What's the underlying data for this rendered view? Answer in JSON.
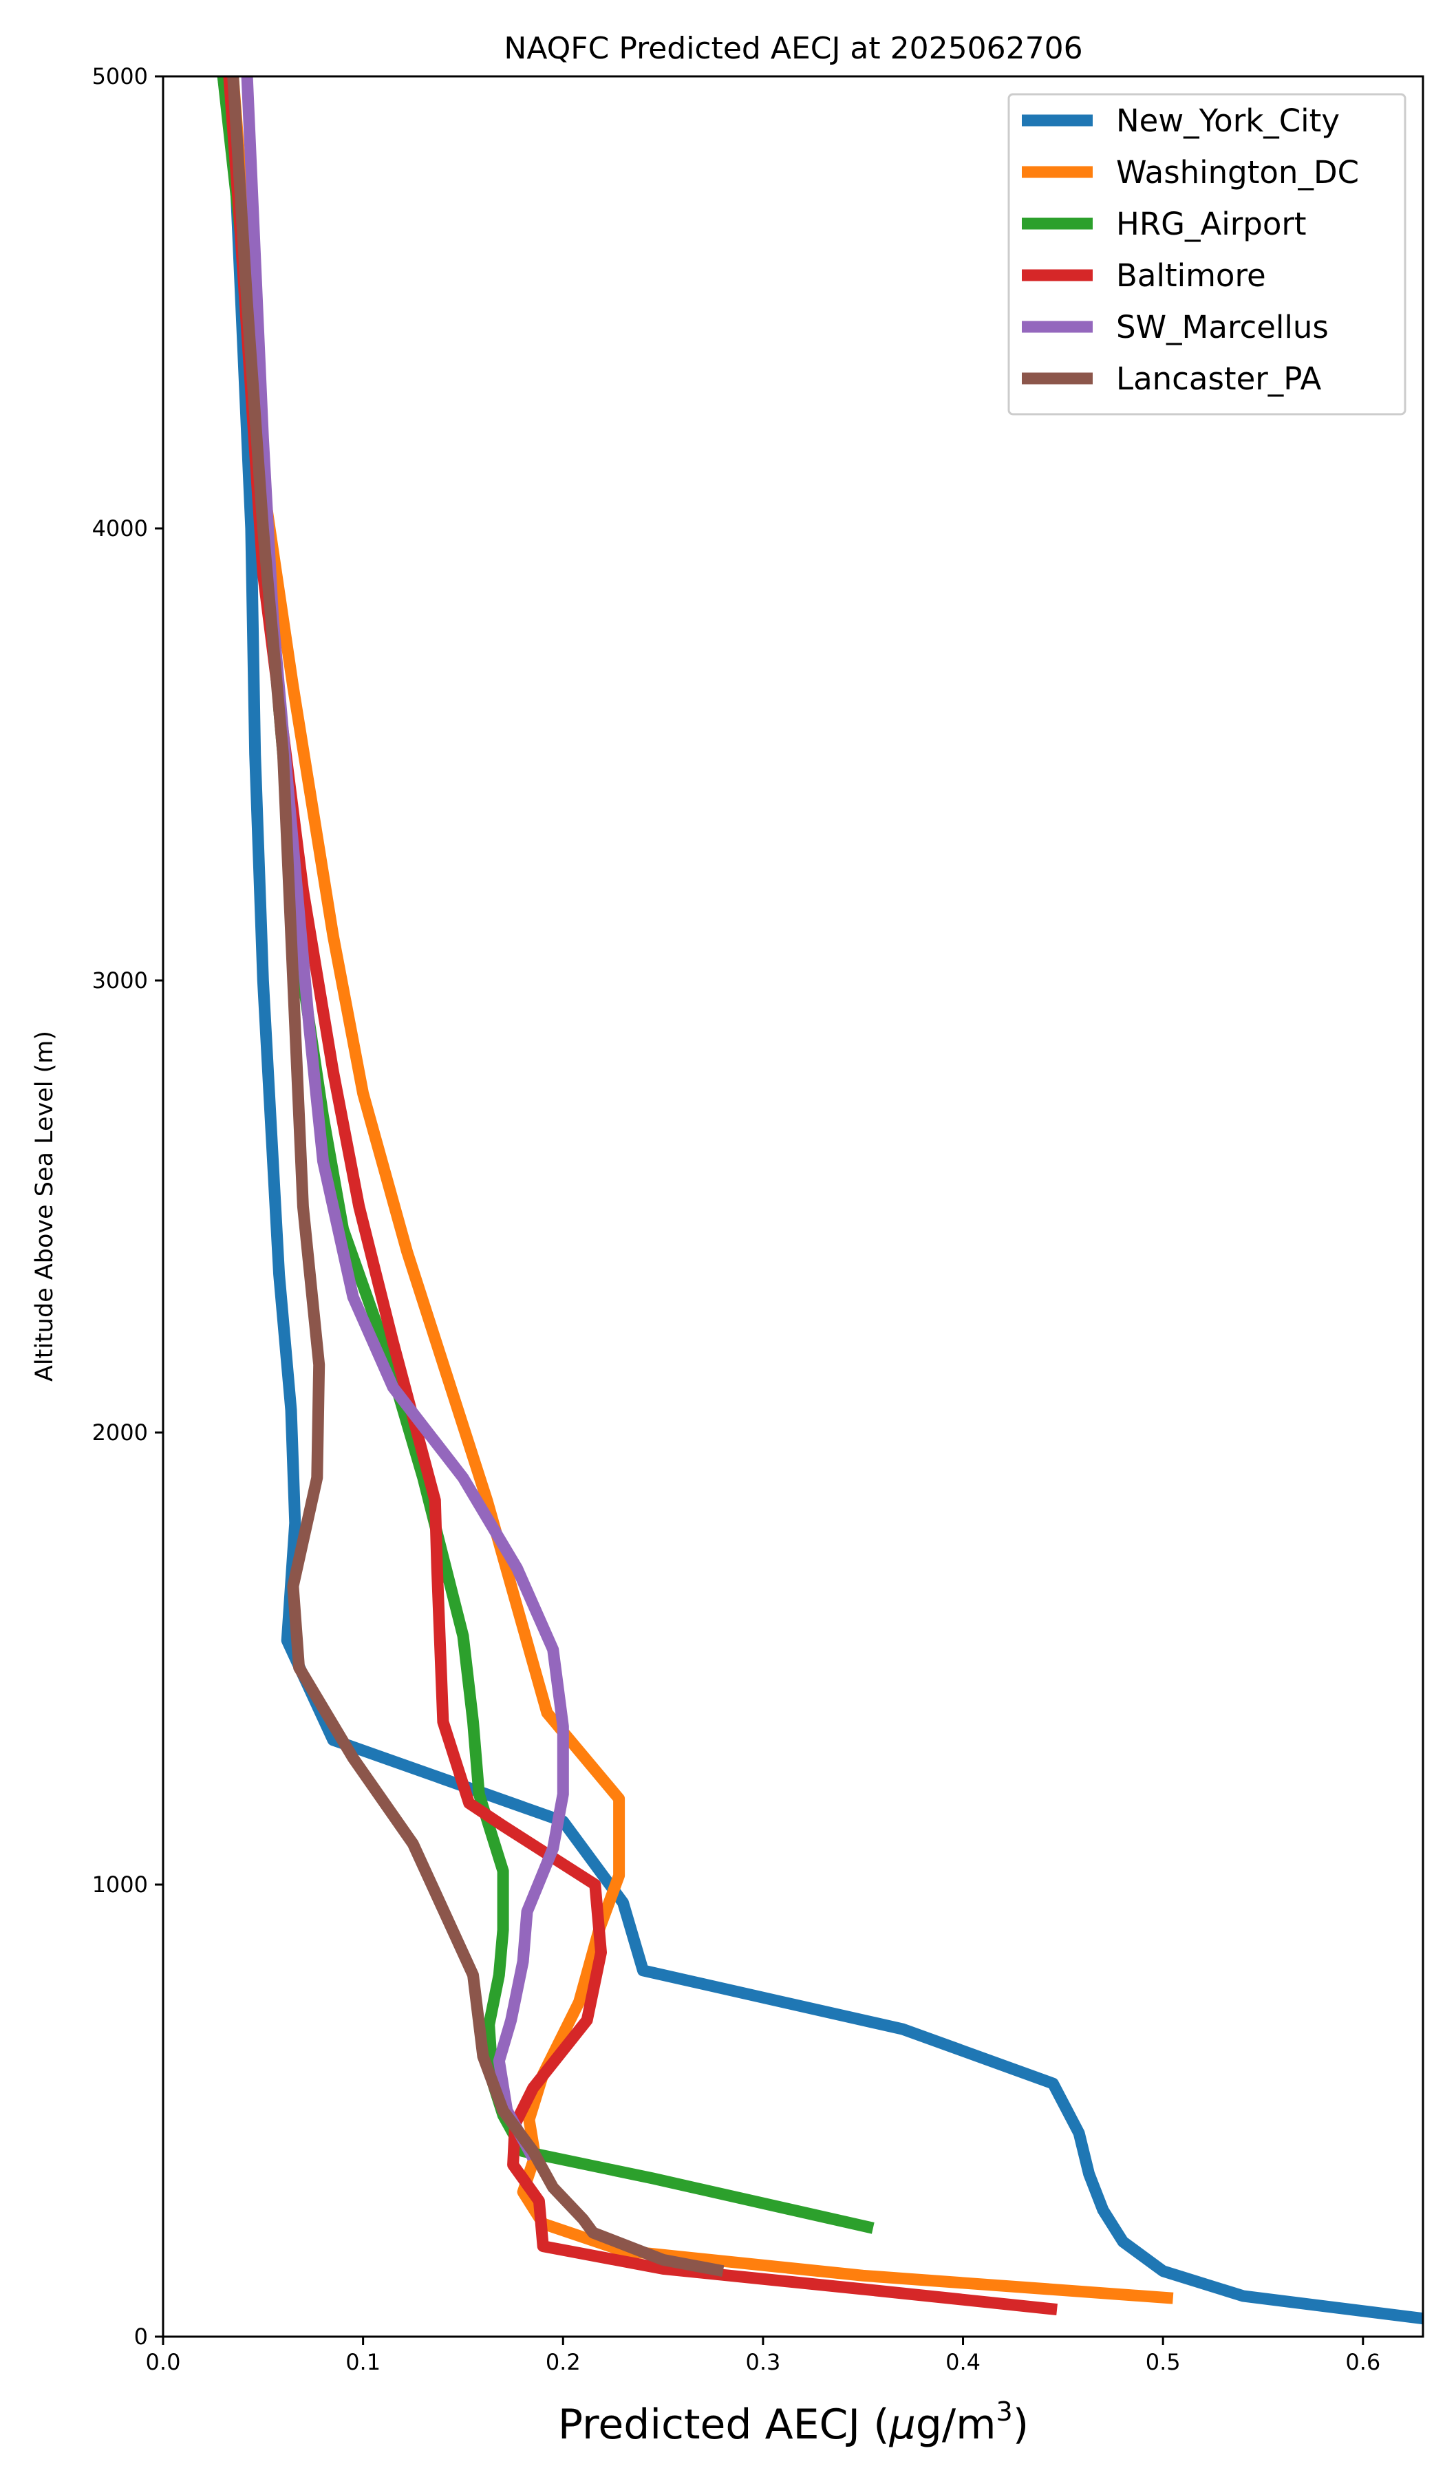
{
  "chart_data": {
    "type": "line",
    "title": "NAQFC Predicted AECJ at 2025062706",
    "xlabel_prefix": "Predicted AECJ (",
    "xlabel_mu": "μ",
    "xlabel_unit": "g/m",
    "xlabel_sup": "3",
    "xlabel_suffix": ")",
    "ylabel": "Altitude Above Sea Level (m)",
    "xlim": [
      0.0,
      0.63
    ],
    "ylim": [
      0,
      5000
    ],
    "xticks": [
      0.0,
      0.1,
      0.2,
      0.3,
      0.4,
      0.5,
      0.6
    ],
    "xtick_labels": [
      "0.0",
      "0.1",
      "0.2",
      "0.3",
      "0.4",
      "0.5",
      "0.6"
    ],
    "yticks": [
      0,
      1000,
      2000,
      3000,
      4000,
      5000
    ],
    "ytick_labels": [
      "0",
      "1000",
      "2000",
      "3000",
      "4000",
      "5000"
    ],
    "grid": false,
    "legend_position": "top-right",
    "series": [
      {
        "name": "New_York_City",
        "color": "#1f77b4",
        "points": [
          [
            0.63,
            40
          ],
          [
            0.54,
            90
          ],
          [
            0.5,
            145
          ],
          [
            0.48,
            210
          ],
          [
            0.47,
            280
          ],
          [
            0.463,
            360
          ],
          [
            0.458,
            450
          ],
          [
            0.445,
            560
          ],
          [
            0.37,
            680
          ],
          [
            0.24,
            810
          ],
          [
            0.23,
            960
          ],
          [
            0.2,
            1140
          ],
          [
            0.085,
            1320
          ],
          [
            0.062,
            1540
          ],
          [
            0.066,
            1800
          ],
          [
            0.064,
            2050
          ],
          [
            0.058,
            2350
          ],
          [
            0.05,
            3000
          ],
          [
            0.046,
            3500
          ],
          [
            0.044,
            4000
          ],
          [
            0.04,
            4400
          ],
          [
            0.036,
            4800
          ],
          [
            0.03,
            5000
          ]
        ]
      },
      {
        "name": "Washington_DC",
        "color": "#ff7f0e",
        "points": [
          [
            0.505,
            85
          ],
          [
            0.35,
            135
          ],
          [
            0.23,
            190
          ],
          [
            0.19,
            250
          ],
          [
            0.18,
            320
          ],
          [
            0.186,
            400
          ],
          [
            0.183,
            480
          ],
          [
            0.19,
            580
          ],
          [
            0.208,
            740
          ],
          [
            0.218,
            900
          ],
          [
            0.228,
            1020
          ],
          [
            0.228,
            1190
          ],
          [
            0.192,
            1380
          ],
          [
            0.162,
            1850
          ],
          [
            0.122,
            2400
          ],
          [
            0.1,
            2750
          ],
          [
            0.085,
            3100
          ],
          [
            0.065,
            3650
          ],
          [
            0.05,
            4100
          ],
          [
            0.042,
            4600
          ],
          [
            0.035,
            5000
          ]
        ]
      },
      {
        "name": "HRG_Airport",
        "color": "#2ca02c",
        "points": [
          [
            0.355,
            240
          ],
          [
            0.3,
            295
          ],
          [
            0.245,
            350
          ],
          [
            0.18,
            410
          ],
          [
            0.17,
            490
          ],
          [
            0.165,
            560
          ],
          [
            0.163,
            690
          ],
          [
            0.168,
            800
          ],
          [
            0.17,
            900
          ],
          [
            0.17,
            1030
          ],
          [
            0.158,
            1200
          ],
          [
            0.155,
            1360
          ],
          [
            0.15,
            1550
          ],
          [
            0.13,
            1900
          ],
          [
            0.11,
            2200
          ],
          [
            0.09,
            2450
          ],
          [
            0.08,
            2700
          ],
          [
            0.07,
            3000
          ],
          [
            0.058,
            3600
          ],
          [
            0.045,
            4400
          ],
          [
            0.03,
            5000
          ]
        ]
      },
      {
        "name": "Baltimore",
        "color": "#d62728",
        "points": [
          [
            0.447,
            60
          ],
          [
            0.35,
            105
          ],
          [
            0.25,
            150
          ],
          [
            0.19,
            200
          ],
          [
            0.188,
            300
          ],
          [
            0.175,
            380
          ],
          [
            0.176,
            470
          ],
          [
            0.185,
            550
          ],
          [
            0.212,
            700
          ],
          [
            0.219,
            850
          ],
          [
            0.216,
            1000
          ],
          [
            0.17,
            1130
          ],
          [
            0.153,
            1180
          ],
          [
            0.14,
            1360
          ],
          [
            0.137,
            1700
          ],
          [
            0.136,
            1850
          ],
          [
            0.115,
            2200
          ],
          [
            0.098,
            2500
          ],
          [
            0.085,
            2800
          ],
          [
            0.07,
            3200
          ],
          [
            0.05,
            3900
          ],
          [
            0.038,
            4700
          ],
          [
            0.033,
            5000
          ]
        ]
      },
      {
        "name": "SW_Marcellus",
        "color": "#9467bd",
        "points": [
          [
            0.185,
            395
          ],
          [
            0.172,
            500
          ],
          [
            0.168,
            610
          ],
          [
            0.174,
            700
          ],
          [
            0.18,
            830
          ],
          [
            0.182,
            940
          ],
          [
            0.195,
            1080
          ],
          [
            0.2,
            1200
          ],
          [
            0.2,
            1350
          ],
          [
            0.195,
            1520
          ],
          [
            0.177,
            1700
          ],
          [
            0.15,
            1900
          ],
          [
            0.115,
            2100
          ],
          [
            0.095,
            2300
          ],
          [
            0.08,
            2600
          ],
          [
            0.073,
            2900
          ],
          [
            0.065,
            3300
          ],
          [
            0.055,
            3800
          ],
          [
            0.05,
            4200
          ],
          [
            0.045,
            4700
          ],
          [
            0.042,
            5000
          ]
        ]
      },
      {
        "name": "Lancaster_PA",
        "color": "#8c564b",
        "points": [
          [
            0.28,
            145
          ],
          [
            0.25,
            170
          ],
          [
            0.215,
            230
          ],
          [
            0.21,
            260
          ],
          [
            0.195,
            330
          ],
          [
            0.185,
            410
          ],
          [
            0.17,
            500
          ],
          [
            0.16,
            620
          ],
          [
            0.155,
            800
          ],
          [
            0.125,
            1090
          ],
          [
            0.095,
            1280
          ],
          [
            0.068,
            1480
          ],
          [
            0.065,
            1660
          ],
          [
            0.077,
            1900
          ],
          [
            0.078,
            2150
          ],
          [
            0.07,
            2500
          ],
          [
            0.065,
            3000
          ],
          [
            0.06,
            3500
          ],
          [
            0.05,
            4000
          ],
          [
            0.042,
            4500
          ],
          [
            0.035,
            5000
          ]
        ]
      }
    ]
  }
}
